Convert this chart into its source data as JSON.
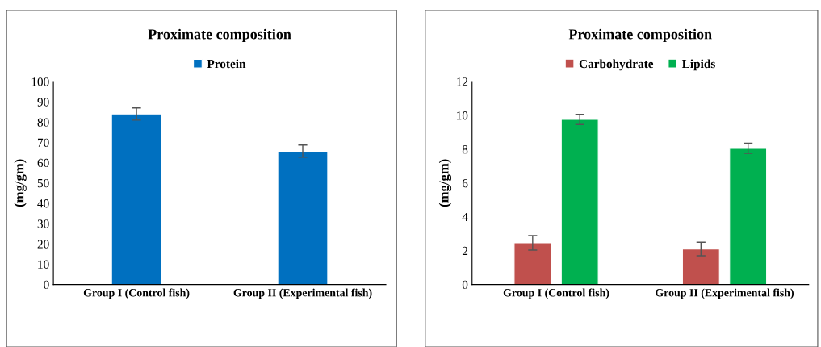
{
  "chart_data": [
    {
      "type": "bar",
      "title": "Proximate composition",
      "ylabel": "(mg/gm)",
      "categories": [
        "Group I (Control fish)",
        "Group II (Experimental fish)"
      ],
      "ylim": [
        0,
        100
      ],
      "yticks": [
        0,
        10,
        20,
        30,
        40,
        50,
        60,
        70,
        80,
        90,
        100
      ],
      "grid": false,
      "legend": "top",
      "series": [
        {
          "name": "Protein",
          "color": "#0070c0",
          "values": [
            84,
            65.7
          ],
          "errors": [
            3,
            3
          ]
        }
      ]
    },
    {
      "type": "bar",
      "title": "Proximate composition",
      "ylabel": "(mg/gm)",
      "categories": [
        "Group I (Control fish)",
        "Group II (Experimental fish)"
      ],
      "ylim": [
        0,
        12
      ],
      "yticks": [
        0,
        2,
        4,
        6,
        8,
        10,
        12
      ],
      "grid": false,
      "legend": "top",
      "series": [
        {
          "name": "Carbohydrate",
          "color": "#c0504d",
          "values": [
            2.46,
            2.1
          ],
          "errors": [
            0.43,
            0.4
          ]
        },
        {
          "name": "Lipids",
          "color": "#00b050",
          "values": [
            9.76,
            8.05
          ],
          "errors": [
            0.3,
            0.3
          ]
        }
      ]
    }
  ]
}
